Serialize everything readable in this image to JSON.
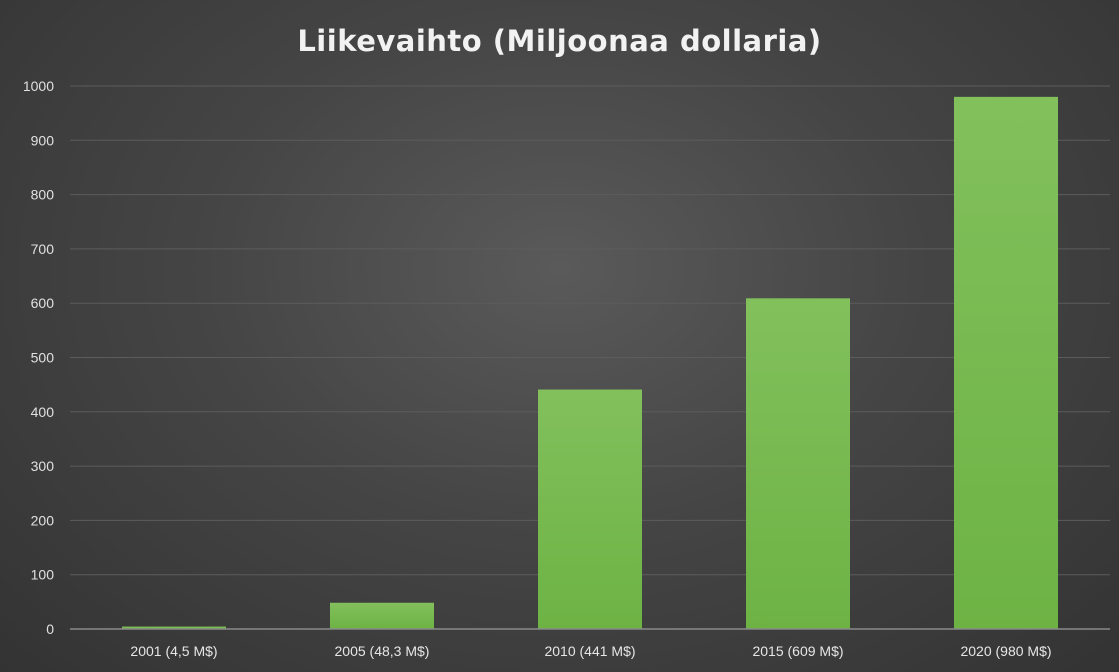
{
  "chart_data": {
    "type": "bar",
    "title": "Liikevaihto (Miljoonaa dollaria)",
    "categories": [
      "2001 (4,5 M$)",
      "2005 (48,3 M$)",
      "2010 (441 M$)",
      "2015 (609 M$)",
      "2020 (980 M$)"
    ],
    "values": [
      4.5,
      48.3,
      441,
      609,
      980
    ],
    "ylim": [
      0,
      1000
    ],
    "yticks": [
      0,
      100,
      200,
      300,
      400,
      500,
      600,
      700,
      800,
      900,
      1000
    ],
    "xlabel": "",
    "ylabel": "",
    "grid": true,
    "legend": "none",
    "bar_color": "#6db344",
    "bar_color_light": "#82c05c"
  }
}
